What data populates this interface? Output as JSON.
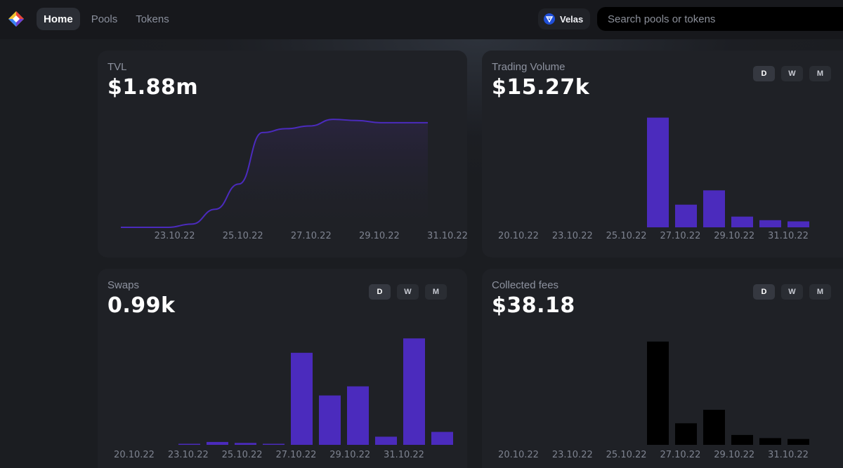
{
  "nav": {
    "items": [
      {
        "label": "Home",
        "active": true
      },
      {
        "label": "Pools",
        "active": false
      },
      {
        "label": "Tokens",
        "active": false
      }
    ]
  },
  "network": {
    "label": "Velas",
    "icon": "velas-icon"
  },
  "search": {
    "placeholder": "Search pools or tokens"
  },
  "colors": {
    "accent": "#4b2bbd",
    "fees_bar": "#000000",
    "background": "#1b1d21",
    "card": "#1f2126"
  },
  "cards": {
    "tvl": {
      "title": "TVL",
      "value": "$1.88m"
    },
    "volume": {
      "title": "Trading Volume",
      "value": "$15.27k",
      "toggles": [
        "D",
        "W",
        "M"
      ]
    },
    "swaps": {
      "title": "Swaps",
      "value": "0.99k",
      "toggles": [
        "D",
        "W",
        "M"
      ]
    },
    "fees": {
      "title": "Collected fees",
      "value": "$38.18",
      "toggles": [
        "D",
        "W",
        "M"
      ]
    }
  },
  "chart_data": [
    {
      "id": "tvl",
      "type": "area",
      "title": "TVL",
      "x_labels": [
        "23.10.22",
        "25.10.22",
        "27.10.22",
        "29.10.22",
        "31.10.22"
      ],
      "x": [
        "22.10.22",
        "23.10.22",
        "24.10.22",
        "24.10.22",
        "25.10.22",
        "25.10.22",
        "26.10.22",
        "26.10.22",
        "27.10.22",
        "28.10.22",
        "29.10.22",
        "30.10.22",
        "31.10.22",
        "31.10.22"
      ],
      "values": [
        0.0,
        0.0,
        0.0,
        0.06,
        0.33,
        0.79,
        1.73,
        1.8,
        1.85,
        1.97,
        1.95,
        1.91,
        1.91,
        1.91
      ],
      "unit": "$m",
      "ylim": [
        0,
        2.1
      ]
    },
    {
      "id": "volume",
      "type": "bar",
      "title": "Trading Volume",
      "categories": [
        "20.10.22",
        "21.10.22",
        "22.10.22",
        "23.10.22",
        "24.10.22",
        "25.10.22",
        "26.10.22",
        "27.10.22",
        "28.10.22",
        "29.10.22",
        "30.10.22",
        "31.10.22"
      ],
      "x_labels": [
        "20.10.22",
        "23.10.22",
        "25.10.22",
        "27.10.22",
        "29.10.22",
        "31.10.22"
      ],
      "values": [
        0,
        0,
        0,
        0,
        0,
        0,
        9.2,
        1.9,
        3.1,
        0.9,
        0.6,
        0.5
      ],
      "unit": "$k",
      "ylim": [
        0,
        10
      ]
    },
    {
      "id": "swaps",
      "type": "bar",
      "title": "Swaps",
      "categories": [
        "20.10.22",
        "21.10.22",
        "22.10.22",
        "23.10.22",
        "24.10.22",
        "25.10.22",
        "26.10.22",
        "27.10.22",
        "28.10.22",
        "29.10.22",
        "30.10.22",
        "31.10.22"
      ],
      "x_labels": [
        "20.10.22",
        "23.10.22",
        "25.10.22",
        "27.10.22",
        "29.10.22",
        "31.10.22"
      ],
      "values": [
        0,
        0,
        1,
        6,
        4,
        2,
        192,
        103,
        122,
        17,
        222,
        27
      ],
      "ylim": [
        0,
        240
      ]
    },
    {
      "id": "fees",
      "type": "bar",
      "title": "Collected fees",
      "categories": [
        "20.10.22",
        "21.10.22",
        "22.10.22",
        "23.10.22",
        "24.10.22",
        "25.10.22",
        "26.10.22",
        "27.10.22",
        "28.10.22",
        "29.10.22",
        "30.10.22",
        "31.10.22"
      ],
      "x_labels": [
        "20.10.22",
        "23.10.22",
        "25.10.22",
        "27.10.22",
        "29.10.22",
        "31.10.22"
      ],
      "values": [
        0,
        0,
        0,
        0,
        0,
        0,
        23.0,
        4.8,
        7.8,
        2.2,
        1.5,
        1.3
      ],
      "unit": "$",
      "ylim": [
        0,
        25
      ]
    }
  ]
}
